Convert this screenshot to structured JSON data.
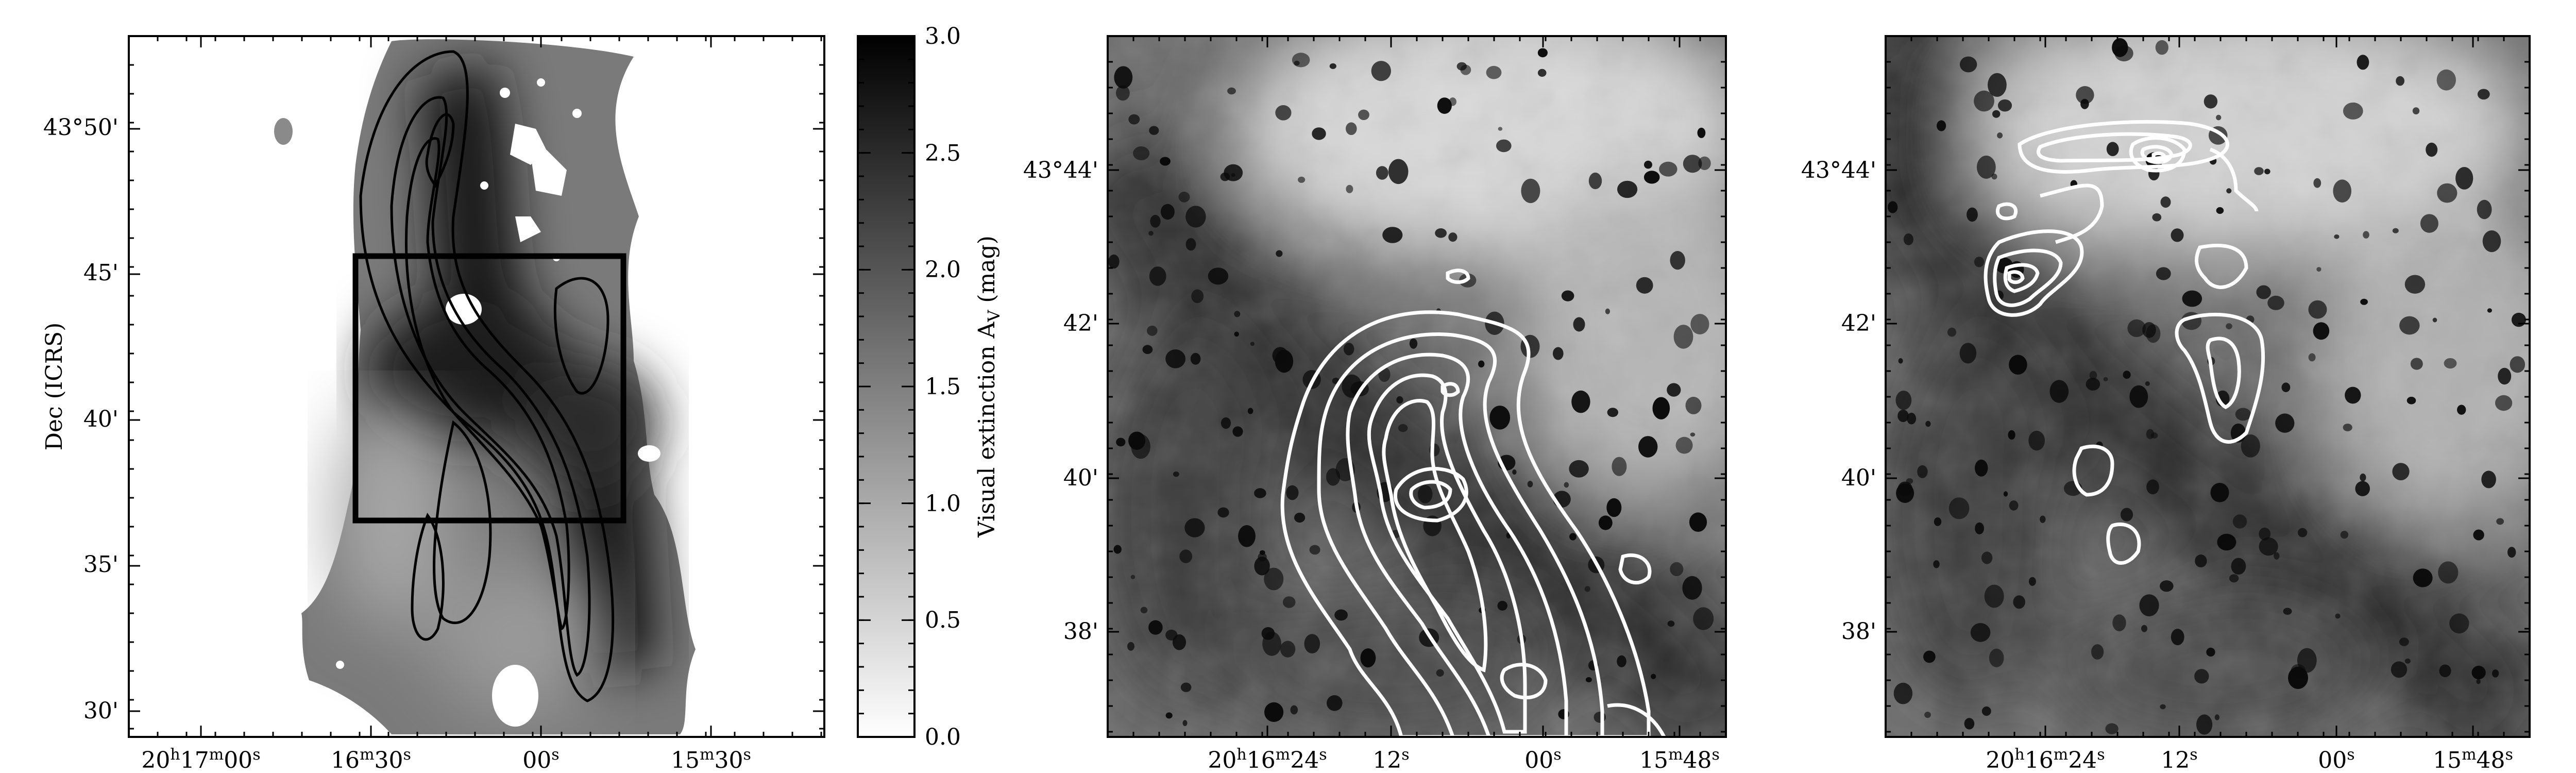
{
  "figure": {
    "panel_left": {
      "y_axis_title": "Dec (ICRS)",
      "y_ticks": [
        "43°50'",
        "45'",
        "40'",
        "35'",
        "30'"
      ],
      "x_ticks": [
        "20h17m00s",
        "16m30s",
        "00s",
        "15m30s"
      ],
      "contour_color": "#000000"
    },
    "colorbar": {
      "title": "Visual extinction A_V (mag)",
      "ticks": [
        "3.0",
        "2.5",
        "2.0",
        "1.5",
        "1.0",
        "0.5",
        "0.0"
      ],
      "min": 0.0,
      "max": 3.0,
      "min_color": "#ffffff",
      "max_color": "#000000"
    },
    "panel_middle": {
      "y_ticks": [
        "43°44'",
        "42'",
        "40'",
        "38'"
      ],
      "x_ticks": [
        "20h16m24s",
        "12s",
        "00s",
        "15m48s"
      ],
      "contour_color": "#ffffff"
    },
    "panel_right": {
      "y_ticks": [
        "43°44'",
        "42'",
        "40'",
        "38'"
      ],
      "x_ticks": [
        "20h16m24s",
        "12s",
        "00s",
        "15m48s"
      ],
      "contour_color": "#ffffff"
    }
  }
}
